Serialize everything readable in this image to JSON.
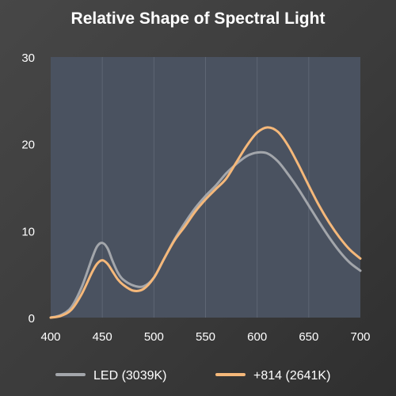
{
  "chart_data": {
    "type": "line",
    "title": "Relative Shape of Spectral Light",
    "xlabel": "",
    "ylabel": "",
    "xlim": [
      400,
      700
    ],
    "ylim": [
      0,
      30
    ],
    "x_ticks": [
      400,
      450,
      500,
      550,
      600,
      650,
      700
    ],
    "y_ticks": [
      0,
      10,
      20,
      30
    ],
    "grid": "vertical",
    "legend_position": "bottom",
    "plot_background": "#4a5260",
    "series": [
      {
        "name": "LED (3039K)",
        "color": "#a3a6ab",
        "x": [
          400,
          410,
          420,
          430,
          440,
          445,
          450,
          455,
          460,
          465,
          470,
          480,
          490,
          500,
          510,
          520,
          530,
          540,
          550,
          560,
          570,
          580,
          590,
          600,
          610,
          620,
          630,
          640,
          650,
          660,
          670,
          680,
          690,
          700
        ],
        "y": [
          0,
          0.3,
          1.2,
          3.5,
          6.8,
          8.2,
          8.6,
          8.0,
          6.5,
          5.2,
          4.4,
          3.7,
          3.6,
          4.6,
          6.8,
          9.0,
          10.9,
          12.6,
          14.0,
          15.2,
          16.6,
          17.7,
          18.6,
          19.0,
          18.9,
          18.0,
          16.5,
          14.8,
          12.9,
          11.0,
          9.2,
          7.6,
          6.3,
          5.4
        ]
      },
      {
        "name": "+814 (2641K)",
        "color": "#f5b87a",
        "x": [
          400,
          410,
          420,
          430,
          440,
          445,
          450,
          455,
          460,
          465,
          470,
          480,
          490,
          500,
          510,
          520,
          530,
          540,
          550,
          560,
          570,
          580,
          590,
          600,
          610,
          620,
          630,
          640,
          650,
          660,
          670,
          680,
          690,
          700
        ],
        "y": [
          0,
          0.2,
          0.9,
          2.7,
          5.2,
          6.2,
          6.6,
          6.2,
          5.3,
          4.4,
          3.8,
          3.1,
          3.3,
          4.6,
          6.8,
          8.9,
          10.5,
          12.2,
          13.6,
          14.8,
          16.0,
          17.9,
          19.8,
          21.3,
          21.9,
          21.4,
          19.8,
          17.6,
          15.2,
          12.9,
          10.9,
          9.2,
          7.8,
          6.8
        ]
      }
    ]
  }
}
